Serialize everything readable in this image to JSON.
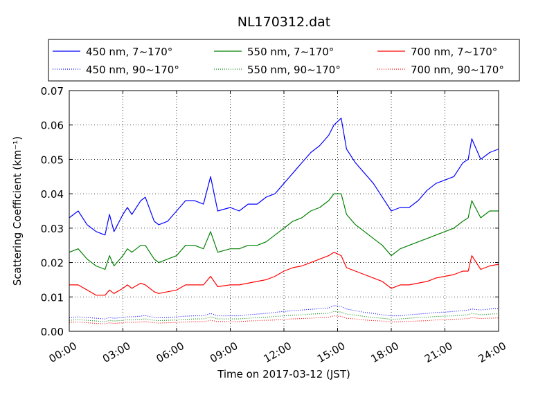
{
  "chart_data": {
    "type": "line",
    "title": "NL170312.dat",
    "xlabel": "Time on 2017-03-12 (JST)",
    "ylabel": "Scattering Coefficient (km⁻¹)",
    "xlim": [
      0,
      24
    ],
    "ylim": [
      0,
      0.07
    ],
    "x_ticks": [
      0,
      3,
      6,
      9,
      12,
      15,
      18,
      21,
      24
    ],
    "x_tick_labels": [
      "00:00",
      "03:00",
      "06:00",
      "09:00",
      "12:00",
      "15:00",
      "18:00",
      "21:00",
      "24:00"
    ],
    "y_ticks": [
      0,
      0.01,
      0.02,
      0.03,
      0.04,
      0.05,
      0.06,
      0.07
    ],
    "y_tick_labels": [
      "0.00",
      "0.01",
      "0.02",
      "0.03",
      "0.04",
      "0.05",
      "0.06",
      "0.07"
    ],
    "grid": true,
    "legend_position": "top (above plot, 3 columns)",
    "x": [
      0,
      0.5,
      1,
      1.5,
      2,
      2.25,
      2.5,
      3,
      3.25,
      3.5,
      4,
      4.25,
      4.75,
      5,
      5.5,
      6,
      6.5,
      7,
      7.5,
      7.9,
      8.3,
      9,
      9.5,
      10,
      10.5,
      11,
      11.5,
      12,
      12.5,
      13,
      13.5,
      14,
      14.5,
      14.8,
      15.2,
      15.5,
      16,
      16.5,
      17,
      17.5,
      18,
      18.5,
      19,
      19.5,
      20,
      20.5,
      21,
      21.5,
      22,
      22.3,
      22.5,
      23,
      23.5,
      24
    ],
    "series": [
      {
        "name": "450 nm, 7∼170°",
        "color": "#0000ff",
        "style": "solid",
        "values": [
          0.033,
          0.035,
          0.031,
          0.029,
          0.028,
          0.034,
          0.029,
          0.034,
          0.036,
          0.034,
          0.038,
          0.039,
          0.032,
          0.031,
          0.032,
          0.035,
          0.038,
          0.038,
          0.037,
          0.045,
          0.035,
          0.036,
          0.035,
          0.037,
          0.037,
          0.039,
          0.04,
          0.043,
          0.046,
          0.049,
          0.052,
          0.054,
          0.057,
          0.06,
          0.062,
          0.053,
          0.049,
          0.046,
          0.043,
          0.039,
          0.035,
          0.036,
          0.036,
          0.038,
          0.041,
          0.043,
          0.044,
          0.045,
          0.049,
          0.05,
          0.056,
          0.05,
          0.052,
          0.053
        ]
      },
      {
        "name": "450 nm, 90∼170°",
        "color": "#0000ff",
        "style": "dotted",
        "values": [
          0.004,
          0.0042,
          0.004,
          0.0038,
          0.0036,
          0.004,
          0.0038,
          0.004,
          0.0042,
          0.0042,
          0.0044,
          0.0046,
          0.004,
          0.004,
          0.004,
          0.0042,
          0.0044,
          0.0045,
          0.0045,
          0.0052,
          0.0045,
          0.0045,
          0.0045,
          0.0048,
          0.005,
          0.0052,
          0.0055,
          0.0058,
          0.006,
          0.0062,
          0.0064,
          0.0066,
          0.0068,
          0.0075,
          0.0072,
          0.0065,
          0.006,
          0.0055,
          0.0052,
          0.0048,
          0.0045,
          0.0045,
          0.0048,
          0.005,
          0.0052,
          0.0055,
          0.0056,
          0.0058,
          0.006,
          0.0062,
          0.0065,
          0.0062,
          0.0065,
          0.0066
        ]
      },
      {
        "name": "550 nm, 7∼170°",
        "color": "#008000",
        "style": "solid",
        "values": [
          0.023,
          0.024,
          0.021,
          0.019,
          0.018,
          0.022,
          0.019,
          0.022,
          0.024,
          0.023,
          0.025,
          0.025,
          0.021,
          0.02,
          0.021,
          0.022,
          0.025,
          0.025,
          0.024,
          0.029,
          0.023,
          0.024,
          0.024,
          0.025,
          0.025,
          0.026,
          0.028,
          0.03,
          0.032,
          0.033,
          0.035,
          0.036,
          0.038,
          0.04,
          0.04,
          0.034,
          0.031,
          0.029,
          0.027,
          0.025,
          0.022,
          0.024,
          0.025,
          0.026,
          0.027,
          0.028,
          0.029,
          0.03,
          0.032,
          0.033,
          0.038,
          0.033,
          0.035,
          0.035
        ]
      },
      {
        "name": "550 nm, 90∼170°",
        "color": "#008000",
        "style": "dotted",
        "values": [
          0.0032,
          0.0034,
          0.0032,
          0.003,
          0.0028,
          0.0032,
          0.003,
          0.0032,
          0.0034,
          0.0033,
          0.0035,
          0.0036,
          0.0032,
          0.0031,
          0.0032,
          0.0033,
          0.0035,
          0.0036,
          0.0036,
          0.0042,
          0.0036,
          0.0036,
          0.0036,
          0.0038,
          0.004,
          0.0041,
          0.0043,
          0.0045,
          0.0047,
          0.0048,
          0.005,
          0.0051,
          0.0053,
          0.0058,
          0.0056,
          0.005,
          0.0047,
          0.0043,
          0.004,
          0.0038,
          0.0035,
          0.0036,
          0.0038,
          0.004,
          0.0041,
          0.0043,
          0.0044,
          0.0045,
          0.0047,
          0.0048,
          0.0052,
          0.0048,
          0.005,
          0.0051
        ]
      },
      {
        "name": "700 nm, 7∼170°",
        "color": "#ff0000",
        "style": "solid",
        "values": [
          0.0135,
          0.0135,
          0.012,
          0.0105,
          0.0105,
          0.012,
          0.011,
          0.0125,
          0.0135,
          0.0125,
          0.014,
          0.0135,
          0.0115,
          0.011,
          0.0115,
          0.012,
          0.0135,
          0.0135,
          0.0135,
          0.016,
          0.013,
          0.0135,
          0.0135,
          0.014,
          0.0145,
          0.015,
          0.016,
          0.0175,
          0.0185,
          0.019,
          0.02,
          0.021,
          0.022,
          0.023,
          0.022,
          0.0185,
          0.0175,
          0.0165,
          0.0155,
          0.0145,
          0.0125,
          0.0135,
          0.0135,
          0.014,
          0.0145,
          0.0155,
          0.016,
          0.0165,
          0.0175,
          0.0175,
          0.022,
          0.018,
          0.019,
          0.0195
        ]
      },
      {
        "name": "700 nm, 90∼170°",
        "color": "#ff0000",
        "style": "dotted",
        "values": [
          0.0026,
          0.0027,
          0.0025,
          0.0023,
          0.0022,
          0.0025,
          0.0023,
          0.0025,
          0.0027,
          0.0026,
          0.0027,
          0.0028,
          0.0025,
          0.0024,
          0.0025,
          0.0026,
          0.0027,
          0.0028,
          0.0028,
          0.0032,
          0.0028,
          0.0028,
          0.0028,
          0.003,
          0.0031,
          0.0032,
          0.0033,
          0.0035,
          0.0036,
          0.0037,
          0.0038,
          0.004,
          0.0041,
          0.0045,
          0.0043,
          0.0038,
          0.0036,
          0.0033,
          0.0031,
          0.003,
          0.0027,
          0.0028,
          0.0029,
          0.003,
          0.0031,
          0.0033,
          0.0034,
          0.0035,
          0.0036,
          0.0037,
          0.004,
          0.0037,
          0.0038,
          0.0039
        ]
      }
    ]
  }
}
